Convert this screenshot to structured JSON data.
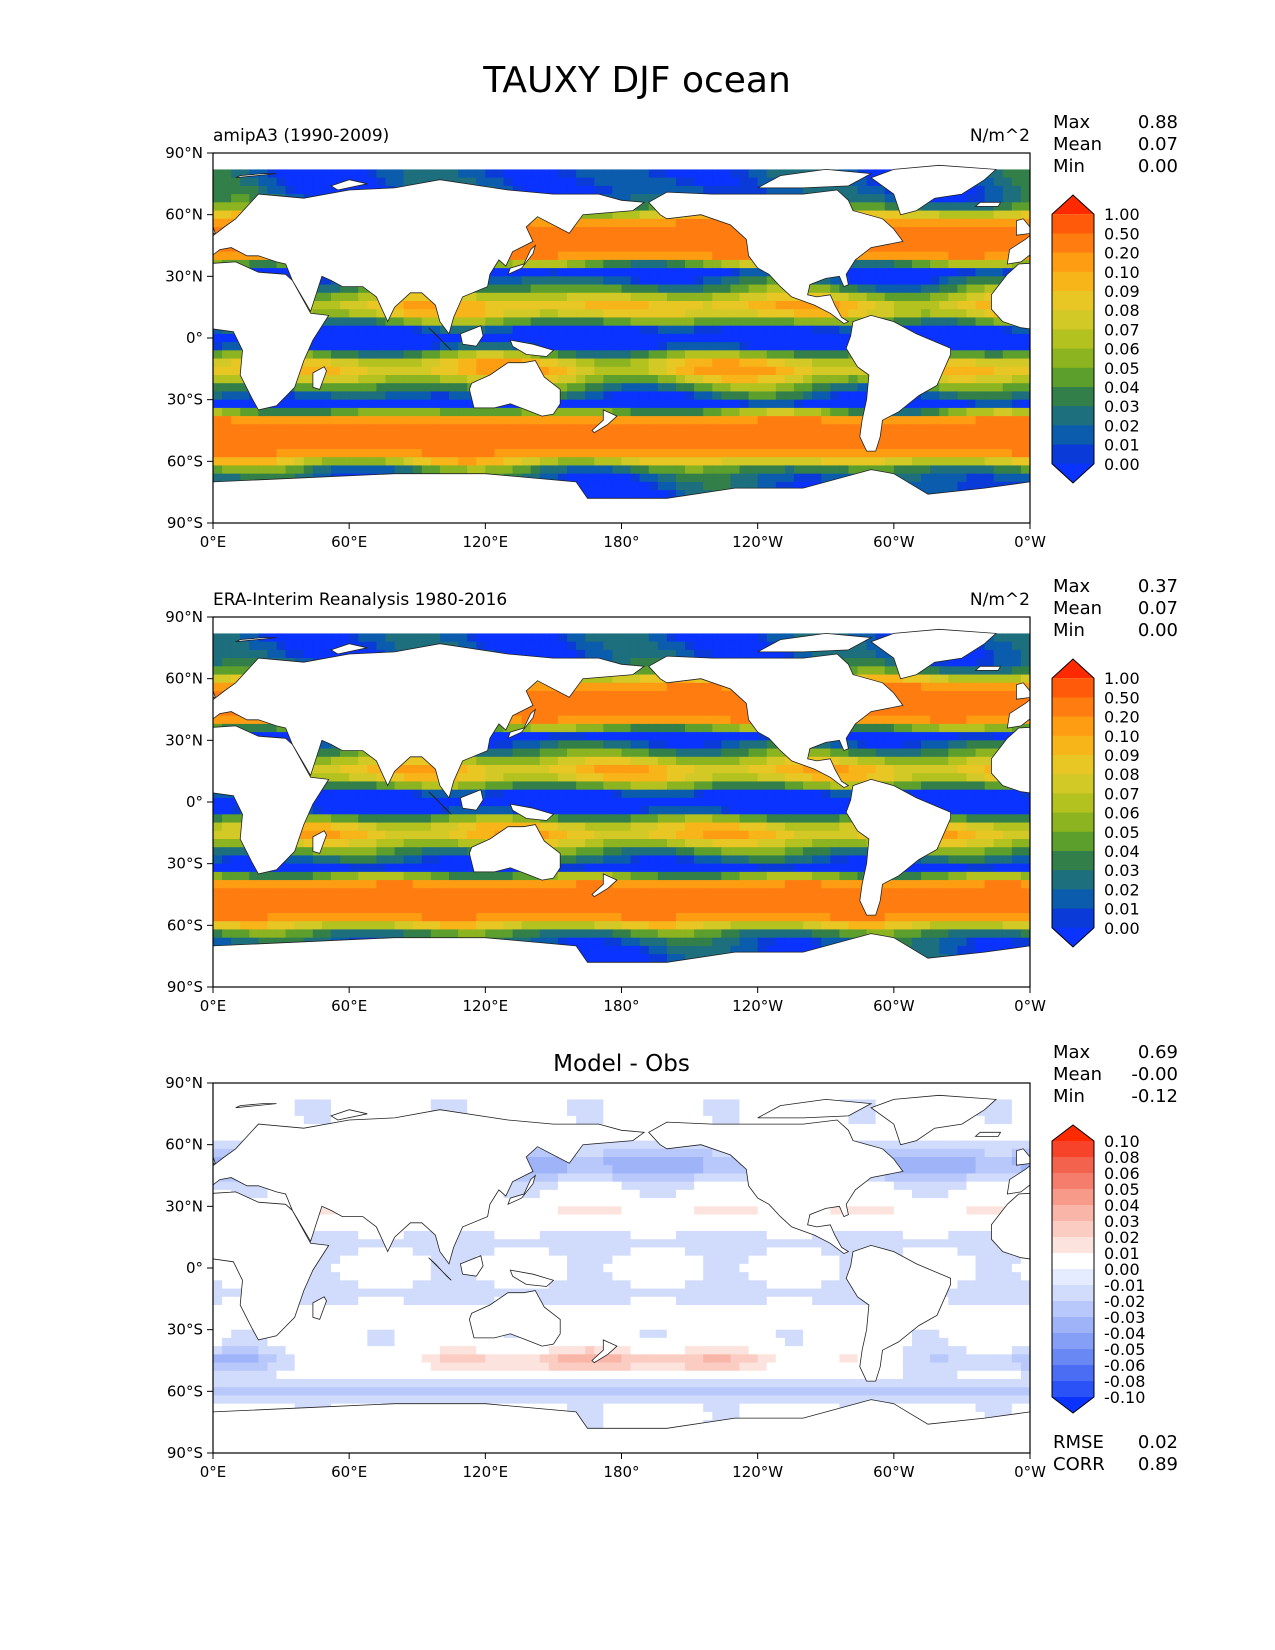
{
  "title": "TAUXY DJF ocean",
  "x_ticks": [
    "0°E",
    "60°E",
    "120°E",
    "180°",
    "120°W",
    "60°W",
    "0°W"
  ],
  "y_ticks": [
    "90°N",
    "60°N",
    "30°N",
    "0°",
    "30°S",
    "60°S",
    "90°S"
  ],
  "stat_labels": {
    "max": "Max",
    "mean": "Mean",
    "min": "Min",
    "rmse": "RMSE",
    "corr": "CORR"
  },
  "seq_levels": [
    "1.00",
    "0.50",
    "0.20",
    "0.10",
    "0.09",
    "0.08",
    "0.07",
    "0.06",
    "0.05",
    "0.04",
    "0.03",
    "0.02",
    "0.01",
    "0.00"
  ],
  "seq_colors": [
    "#ff2a00",
    "#ff5a0a",
    "#ff7c10",
    "#ff9d12",
    "#f7b51a",
    "#e8c624",
    "#d2c927",
    "#b4c21f",
    "#8cb320",
    "#5d9f2c",
    "#327f49",
    "#1d6f7e",
    "#0b5cad",
    "#0a3bd8",
    "#0b33ff"
  ],
  "div_levels": [
    "0.10",
    "0.08",
    "0.06",
    "0.05",
    "0.04",
    "0.03",
    "0.02",
    "0.01",
    "0.00",
    "-0.01",
    "-0.02",
    "-0.03",
    "-0.04",
    "-0.05",
    "-0.06",
    "-0.08",
    "-0.10"
  ],
  "div_colors": [
    "#ff2a00",
    "#f7432a",
    "#f3624d",
    "#f57d6c",
    "#f79a8a",
    "#f9b5a8",
    "#fbcdc2",
    "#fde3dd",
    "#ffffff",
    "#e6ecff",
    "#d1dcfd",
    "#b8c8fb",
    "#9fb3f8",
    "#859ef6",
    "#6a88f4",
    "#4a6df3",
    "#2a52f6",
    "#0b33ff"
  ],
  "panels": [
    {
      "id": "model",
      "left_title": "amipA3 (1990-2009)",
      "center_title": "",
      "units": "N/m^2",
      "stats": {
        "max": "0.88",
        "mean": "0.07",
        "min": "0.00"
      },
      "colormap": "sequential"
    },
    {
      "id": "obs",
      "left_title": "ERA-Interim Reanalysis 1980-2016",
      "center_title": "",
      "units": "N/m^2",
      "stats": {
        "max": "0.37",
        "mean": "0.07",
        "min": "0.00"
      },
      "colormap": "sequential"
    },
    {
      "id": "diff",
      "left_title": "",
      "center_title": "Model - Obs",
      "units": "",
      "stats": {
        "max": "0.69",
        "mean": "-0.00",
        "min": "-0.12",
        "rmse": "0.02",
        "corr": "0.89"
      },
      "colormap": "diverging"
    }
  ]
}
